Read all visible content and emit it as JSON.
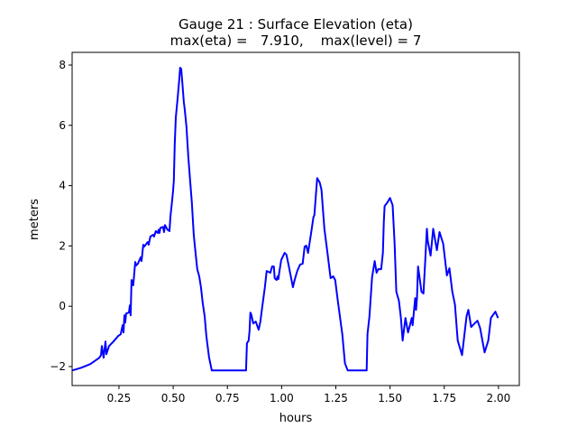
{
  "chart_data": {
    "type": "line",
    "title": "Gauge 21 : Surface Elevation (eta)",
    "subtitle": "max(eta) =   7.910,    max(level) = 7",
    "xlabel": "hours",
    "ylabel": "meters",
    "xlim": [
      0.034,
      2.096
    ],
    "ylim": [
      -2.63,
      8.42
    ],
    "xticks": [
      0.25,
      0.5,
      0.75,
      1.0,
      1.25,
      1.5,
      1.75,
      2.0
    ],
    "xtick_labels": [
      "0.25",
      "0.50",
      "0.75",
      "1.00",
      "1.25",
      "1.50",
      "1.75",
      "2.00"
    ],
    "yticks": [
      -2,
      0,
      2,
      4,
      6,
      8
    ],
    "ytick_labels": [
      "−2",
      "0",
      "2",
      "4",
      "6",
      "8"
    ],
    "grid": false,
    "series": [
      {
        "name": "eta",
        "color": "#0000ff",
        "x": [
          0.034,
          0.076,
          0.117,
          0.159,
          0.167,
          0.171,
          0.179,
          0.188,
          0.192,
          0.204,
          0.225,
          0.246,
          0.258,
          0.267,
          0.271,
          0.275,
          0.279,
          0.283,
          0.296,
          0.3,
          0.304,
          0.308,
          0.316,
          0.325,
          0.329,
          0.337,
          0.35,
          0.354,
          0.362,
          0.366,
          0.383,
          0.387,
          0.395,
          0.408,
          0.412,
          0.42,
          0.429,
          0.433,
          0.437,
          0.441,
          0.453,
          0.458,
          0.462,
          0.474,
          0.483,
          0.487,
          0.495,
          0.499,
          0.503,
          0.507,
          0.512,
          0.52,
          0.528,
          0.532,
          0.537,
          0.541,
          0.549,
          0.553,
          0.561,
          0.57,
          0.578,
          0.586,
          0.595,
          0.603,
          0.611,
          0.62,
          0.628,
          0.636,
          0.645,
          0.653,
          0.665,
          0.678,
          0.836,
          0.84,
          0.848,
          0.852,
          0.856,
          0.86,
          0.869,
          0.881,
          0.894,
          0.902,
          0.91,
          0.923,
          0.931,
          0.948,
          0.956,
          0.964,
          0.968,
          0.977,
          0.981,
          0.985,
          0.989,
          0.998,
          1.014,
          1.022,
          1.031,
          1.052,
          1.06,
          1.072,
          1.085,
          1.097,
          1.106,
          1.114,
          1.122,
          1.135,
          1.147,
          1.151,
          1.164,
          1.176,
          1.184,
          1.197,
          1.209,
          1.226,
          1.238,
          1.247,
          1.259,
          1.28,
          1.292,
          1.305,
          1.392,
          1.396,
          1.405,
          1.417,
          1.429,
          1.438,
          1.446,
          1.459,
          1.467,
          1.471,
          1.475,
          1.488,
          1.5,
          1.512,
          1.521,
          1.529,
          1.541,
          1.55,
          1.558,
          1.571,
          1.583,
          1.6,
          1.604,
          1.616,
          1.62,
          1.624,
          1.629,
          1.645,
          1.654,
          1.662,
          1.67,
          1.674,
          1.687,
          1.699,
          1.716,
          1.728,
          1.745,
          1.762,
          1.774,
          1.787,
          1.799,
          1.812,
          1.832,
          1.853,
          1.861,
          1.874,
          1.89,
          1.903,
          1.915,
          1.936,
          1.953,
          1.965,
          1.986,
          1.998
        ],
        "y": [
          -2.13,
          -2.04,
          -1.92,
          -1.71,
          -1.62,
          -1.32,
          -1.71,
          -1.17,
          -1.59,
          -1.32,
          -1.17,
          -0.99,
          -0.93,
          -0.63,
          -0.87,
          -0.3,
          -0.54,
          -0.24,
          -0.21,
          0.03,
          -0.3,
          0.87,
          0.69,
          1.47,
          1.35,
          1.41,
          1.62,
          1.5,
          2.04,
          1.98,
          2.13,
          2.04,
          2.31,
          2.37,
          2.31,
          2.49,
          2.43,
          2.54,
          2.43,
          2.6,
          2.63,
          2.46,
          2.69,
          2.54,
          2.49,
          2.96,
          3.5,
          3.8,
          4.16,
          5.36,
          6.26,
          6.86,
          7.51,
          7.91,
          7.87,
          7.51,
          6.77,
          6.56,
          5.96,
          4.94,
          4.16,
          3.44,
          2.37,
          1.77,
          1.23,
          0.99,
          0.63,
          0.12,
          -0.33,
          -0.99,
          -1.68,
          -2.13,
          -2.13,
          -1.23,
          -1.14,
          -0.81,
          -0.21,
          -0.27,
          -0.57,
          -0.51,
          -0.78,
          -0.51,
          -0.06,
          0.63,
          1.17,
          1.11,
          1.32,
          1.32,
          0.93,
          0.87,
          0.99,
          0.9,
          1.11,
          1.53,
          1.77,
          1.71,
          1.41,
          0.63,
          0.87,
          1.17,
          1.38,
          1.41,
          1.98,
          2.01,
          1.77,
          2.37,
          2.96,
          3.02,
          4.25,
          4.1,
          3.86,
          2.57,
          1.92,
          0.93,
          0.99,
          0.87,
          0.18,
          -0.93,
          -1.89,
          -2.13,
          -2.13,
          -0.93,
          -0.33,
          0.96,
          1.5,
          1.11,
          1.23,
          1.23,
          1.77,
          2.78,
          3.32,
          3.44,
          3.59,
          3.35,
          2.07,
          0.48,
          0.18,
          -0.39,
          -1.14,
          -0.39,
          -0.87,
          -0.39,
          -0.63,
          0.27,
          -0.12,
          0.27,
          1.32,
          0.48,
          0.42,
          1.47,
          2.57,
          2.16,
          1.68,
          2.57,
          1.86,
          2.46,
          2.07,
          1.02,
          1.26,
          0.48,
          0.06,
          -1.14,
          -1.62,
          -0.33,
          -0.12,
          -0.69,
          -0.57,
          -0.48,
          -0.72,
          -1.53,
          -1.14,
          -0.39,
          -0.18,
          -0.39
        ]
      }
    ]
  }
}
